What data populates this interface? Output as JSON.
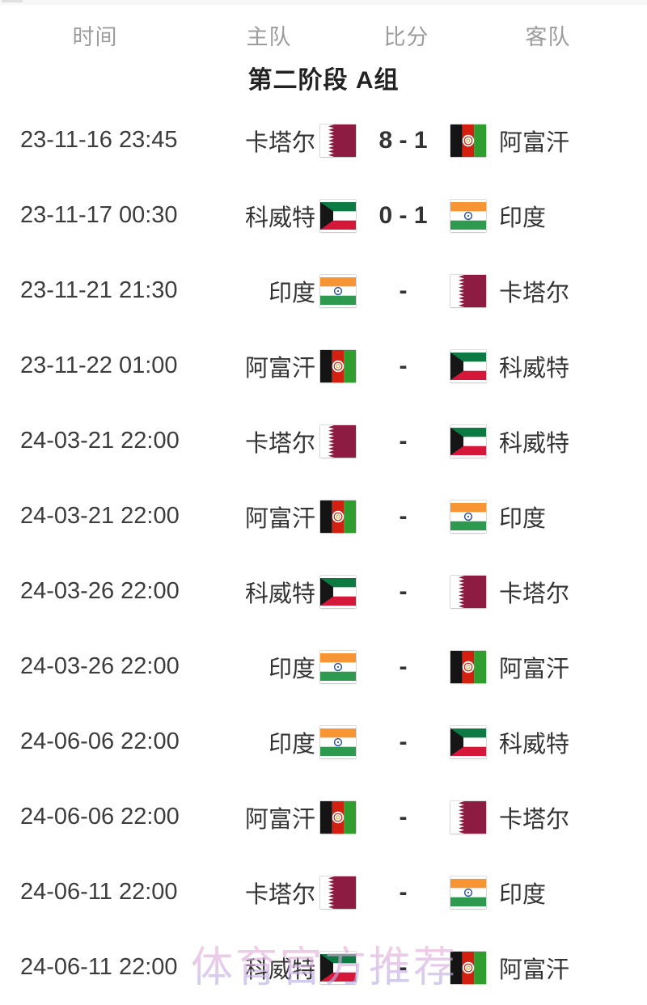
{
  "page": {
    "header": {
      "time": "时间",
      "home": "主队",
      "score": "比分",
      "away": "客队"
    },
    "group_title": "第二阶段 A组",
    "rows": [
      {
        "time": "23-11-16 23:45",
        "home": "卡塔尔",
        "home_flag": "qatar",
        "score": "8 - 1",
        "away": "阿富汗",
        "away_flag": "afghanistan"
      },
      {
        "time": "23-11-17 00:30",
        "home": "科威特",
        "home_flag": "kuwait",
        "score": "0 - 1",
        "away": "印度",
        "away_flag": "india"
      },
      {
        "time": "23-11-21 21:30",
        "home": "印度",
        "home_flag": "india",
        "score": "-",
        "away": "卡塔尔",
        "away_flag": "qatar"
      },
      {
        "time": "23-11-22 01:00",
        "home": "阿富汗",
        "home_flag": "afghanistan",
        "score": "-",
        "away": "科威特",
        "away_flag": "kuwait"
      },
      {
        "time": "24-03-21 22:00",
        "home": "卡塔尔",
        "home_flag": "qatar",
        "score": "-",
        "away": "科威特",
        "away_flag": "kuwait"
      },
      {
        "time": "24-03-21 22:00",
        "home": "阿富汗",
        "home_flag": "afghanistan",
        "score": "-",
        "away": "印度",
        "away_flag": "india"
      },
      {
        "time": "24-03-26 22:00",
        "home": "科威特",
        "home_flag": "kuwait",
        "score": "-",
        "away": "卡塔尔",
        "away_flag": "qatar"
      },
      {
        "time": "24-03-26 22:00",
        "home": "印度",
        "home_flag": "india",
        "score": "-",
        "away": "阿富汗",
        "away_flag": "afghanistan"
      },
      {
        "time": "24-06-06 22:00",
        "home": "印度",
        "home_flag": "india",
        "score": "-",
        "away": "科威特",
        "away_flag": "kuwait"
      },
      {
        "time": "24-06-06 22:00",
        "home": "阿富汗",
        "home_flag": "afghanistan",
        "score": "-",
        "away": "卡塔尔",
        "away_flag": "qatar"
      },
      {
        "time": "24-06-11 22:00",
        "home": "卡塔尔",
        "home_flag": "qatar",
        "score": "-",
        "away": "印度",
        "away_flag": "india"
      },
      {
        "time": "24-06-11 22:00",
        "home": "科威特",
        "home_flag": "kuwait",
        "score": "-",
        "away": "阿富汗",
        "away_flag": "afghanistan"
      }
    ],
    "watermark": "体育官方推荐"
  },
  "colors": {
    "qatar_maroon": "#8d1b42",
    "kuwait_green": "#0d7a44",
    "kuwait_red": "#d5173a",
    "kuwait_black": "#161616",
    "india_saffron": "#f79433",
    "india_green": "#2e9a50",
    "india_navy": "#3056a0",
    "afghan_black": "#141414",
    "afghan_red": "#d32011",
    "afghan_green": "#2f9e2f",
    "header_gray": "#9c9c9c",
    "text_dark": "#3a3a3a",
    "watermark_pink": "#f6aed1",
    "watermark_blue": "#9fb0ef"
  }
}
